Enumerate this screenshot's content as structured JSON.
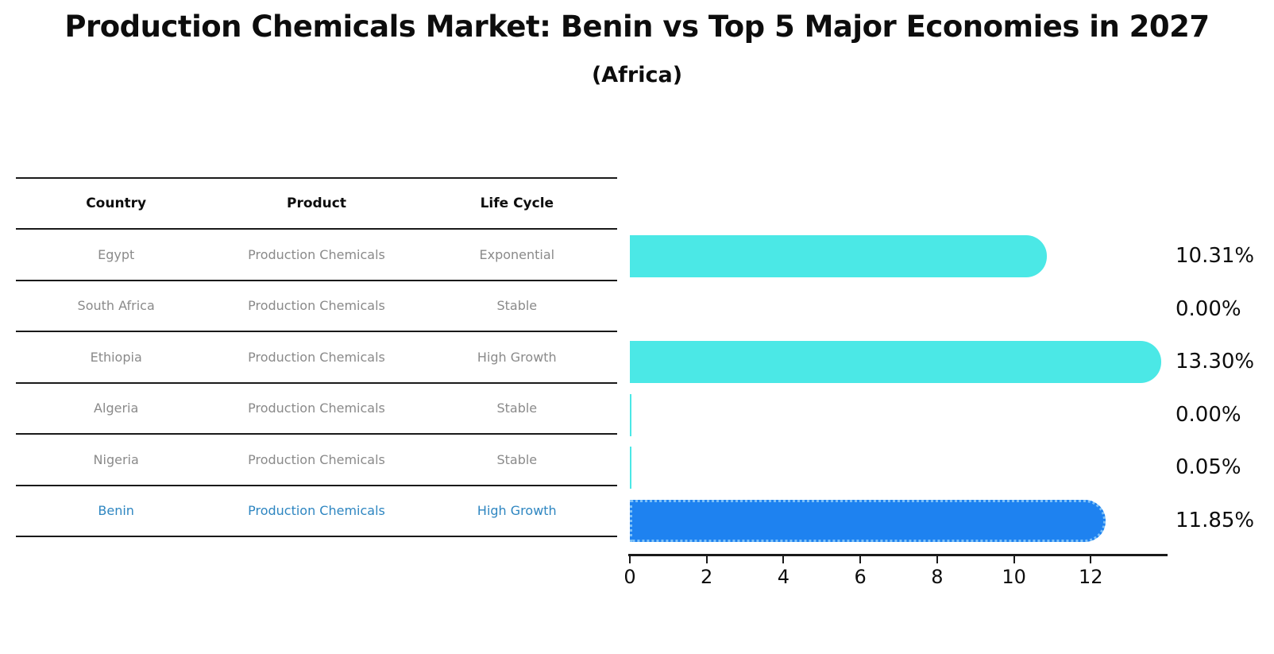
{
  "title": "Production Chemicals Market: Benin vs Top 5 Major Economies in 2027",
  "subtitle": "(Africa)",
  "table": {
    "headers": [
      "Country",
      "Product",
      "Life Cycle"
    ],
    "rows": [
      {
        "country": "Egypt",
        "product": "Production Chemicals",
        "life_cycle": "Exponential"
      },
      {
        "country": "South Africa",
        "product": "Production Chemicals",
        "life_cycle": "Stable"
      },
      {
        "country": "Ethiopia",
        "product": "Production Chemicals",
        "life_cycle": "High Growth"
      },
      {
        "country": "Algeria",
        "product": "Production Chemicals",
        "life_cycle": "Stable"
      },
      {
        "country": "Nigeria",
        "product": "Production Chemicals",
        "life_cycle": "Stable"
      },
      {
        "country": "Benin",
        "product": "Production Chemicals",
        "life_cycle": "High Growth"
      }
    ]
  },
  "chart_data": {
    "type": "bar",
    "orientation": "horizontal",
    "title": "Production Chemicals Market: Benin vs Top 5 Major Economies in 2027 (Africa)",
    "categories": [
      "Egypt",
      "South Africa",
      "Ethiopia",
      "Algeria",
      "Nigeria",
      "Benin"
    ],
    "values": [
      10.31,
      0.0,
      13.3,
      0.004,
      0.05,
      11.85
    ],
    "value_labels": [
      "10.31%",
      "0.00%",
      "13.30%",
      "0.00%",
      "0.05%",
      "11.85%"
    ],
    "unit": "percent CAGR",
    "xlim": [
      0,
      14
    ],
    "xticks": [
      "0",
      "2",
      "4",
      "6",
      "8",
      "10",
      "12"
    ],
    "grid": false,
    "legend": false,
    "highlight_index": 5,
    "bar_color": "#4BE8E6",
    "highlight_bar_color": "#1E82F0",
    "highlight_border_color": "#7CC0F8",
    "highlight_text_color": "#2E86C1"
  }
}
